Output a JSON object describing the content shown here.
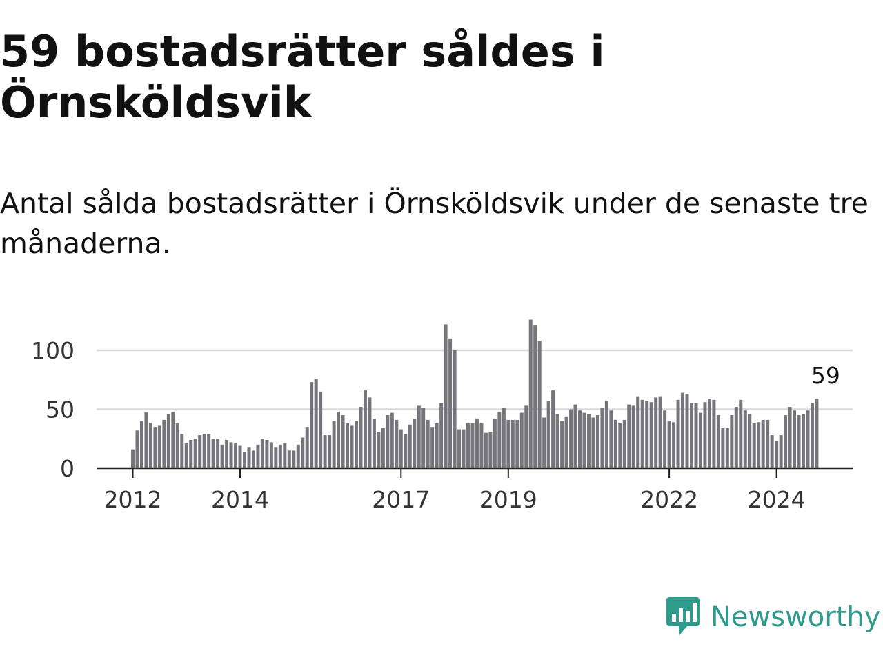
{
  "header": {
    "title": "59 bostadsrätter såldes i Örnsköldsvik",
    "subtitle": "Antal sålda bostadsrätter i Örnsköldsvik under de senaste tre månaderna."
  },
  "brand": {
    "name": "Newsworthy",
    "color": "#2d9a8c"
  },
  "colors": {
    "bar": "#76757b",
    "highlight": "#1a9a8f",
    "grid": "#d9d9d9",
    "axis": "#222222"
  },
  "chart_data": {
    "type": "bar",
    "x_start": "2012-01",
    "x_end": "2024-12",
    "xticks": [
      "2012",
      "2014",
      "2017",
      "2019",
      "2022",
      "2024"
    ],
    "yticks": [
      0,
      50,
      100
    ],
    "ylim": [
      0,
      130
    ],
    "grid": true,
    "highlight": {
      "x": "2024-12",
      "value": 59,
      "label": "59"
    },
    "values": [
      16,
      32,
      40,
      48,
      38,
      35,
      36,
      41,
      46,
      48,
      38,
      29,
      21,
      24,
      25,
      28,
      29,
      29,
      25,
      25,
      20,
      24,
      22,
      21,
      19,
      14,
      18,
      15,
      20,
      25,
      24,
      22,
      18,
      20,
      21,
      15,
      15,
      20,
      26,
      35,
      73,
      76,
      65,
      28,
      28,
      40,
      48,
      45,
      38,
      36,
      40,
      52,
      66,
      60,
      42,
      31,
      34,
      45,
      47,
      41,
      33,
      29,
      37,
      42,
      53,
      51,
      41,
      35,
      38,
      55,
      122,
      110,
      100,
      33,
      33,
      38,
      38,
      42,
      38,
      30,
      31,
      42,
      48,
      51,
      41,
      41,
      41,
      47,
      53,
      126,
      121,
      108,
      43,
      57,
      66,
      46,
      40,
      44,
      50,
      54,
      49,
      47,
      46,
      43,
      45,
      51,
      57,
      49,
      41,
      38,
      41,
      54,
      53,
      61,
      58,
      57,
      56,
      60,
      61,
      49,
      40,
      39,
      58,
      64,
      63,
      55,
      55,
      47,
      56,
      59,
      58,
      45,
      34,
      34,
      45,
      52,
      58,
      49,
      46,
      38,
      39,
      41,
      41,
      28,
      23,
      28,
      45,
      52,
      49,
      45,
      46,
      49,
      55,
      59
    ]
  }
}
